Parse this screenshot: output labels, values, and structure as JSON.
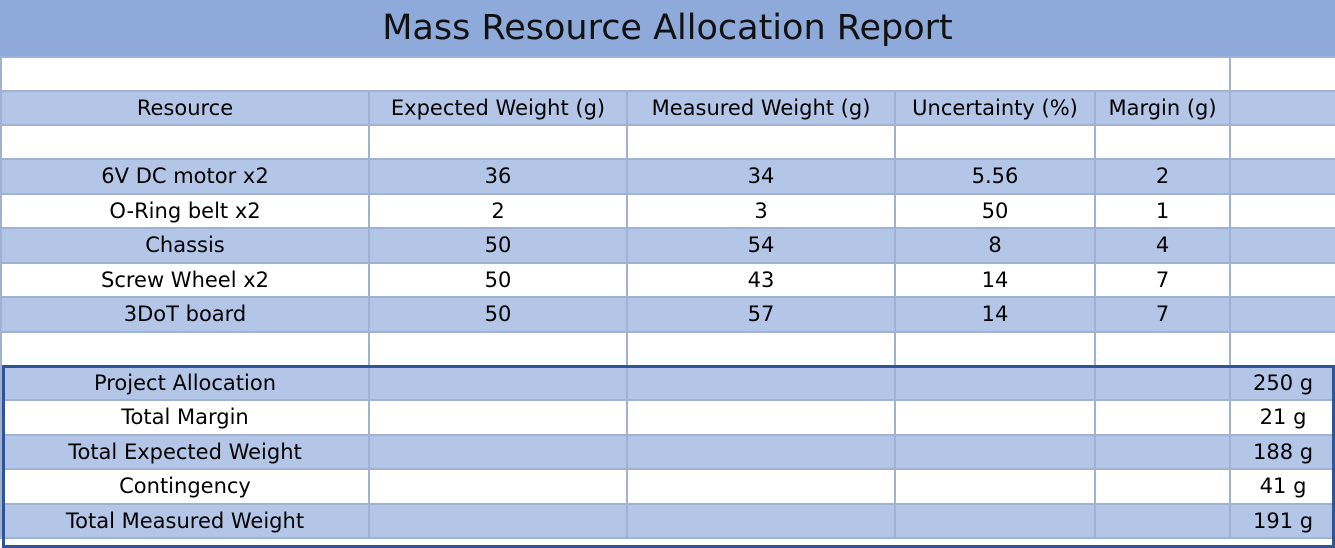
{
  "title": "Mass Resource Allocation Report",
  "headers": [
    "Resource",
    "Expected Weight (g)",
    "Measured Weight (g)",
    "Uncertainty (%)",
    "Margin (g)",
    ""
  ],
  "items": [
    {
      "resource": "6V DC motor x2",
      "expected": "36",
      "measured": "34",
      "uncertainty": "5.56",
      "margin": "2"
    },
    {
      "resource": "O-Ring belt x2",
      "expected": "2",
      "measured": "3",
      "uncertainty": "50",
      "margin": "1"
    },
    {
      "resource": "Chassis",
      "expected": "50",
      "measured": "54",
      "uncertainty": "8",
      "margin": "4"
    },
    {
      "resource": "Screw Wheel x2",
      "expected": "50",
      "measured": "43",
      "uncertainty": "14",
      "margin": "7"
    },
    {
      "resource": "3DoT board",
      "expected": "50",
      "measured": "57",
      "uncertainty": "14",
      "margin": "7"
    }
  ],
  "summary": [
    {
      "label": "Project Allocation",
      "value": "250 g"
    },
    {
      "label": "Total Margin",
      "value": "21 g"
    },
    {
      "label": "Total Expected Weight",
      "value": "188 g"
    },
    {
      "label": "Contingency",
      "value": "41 g"
    },
    {
      "label": "Total Measured Weight",
      "value": "191 g"
    }
  ]
}
